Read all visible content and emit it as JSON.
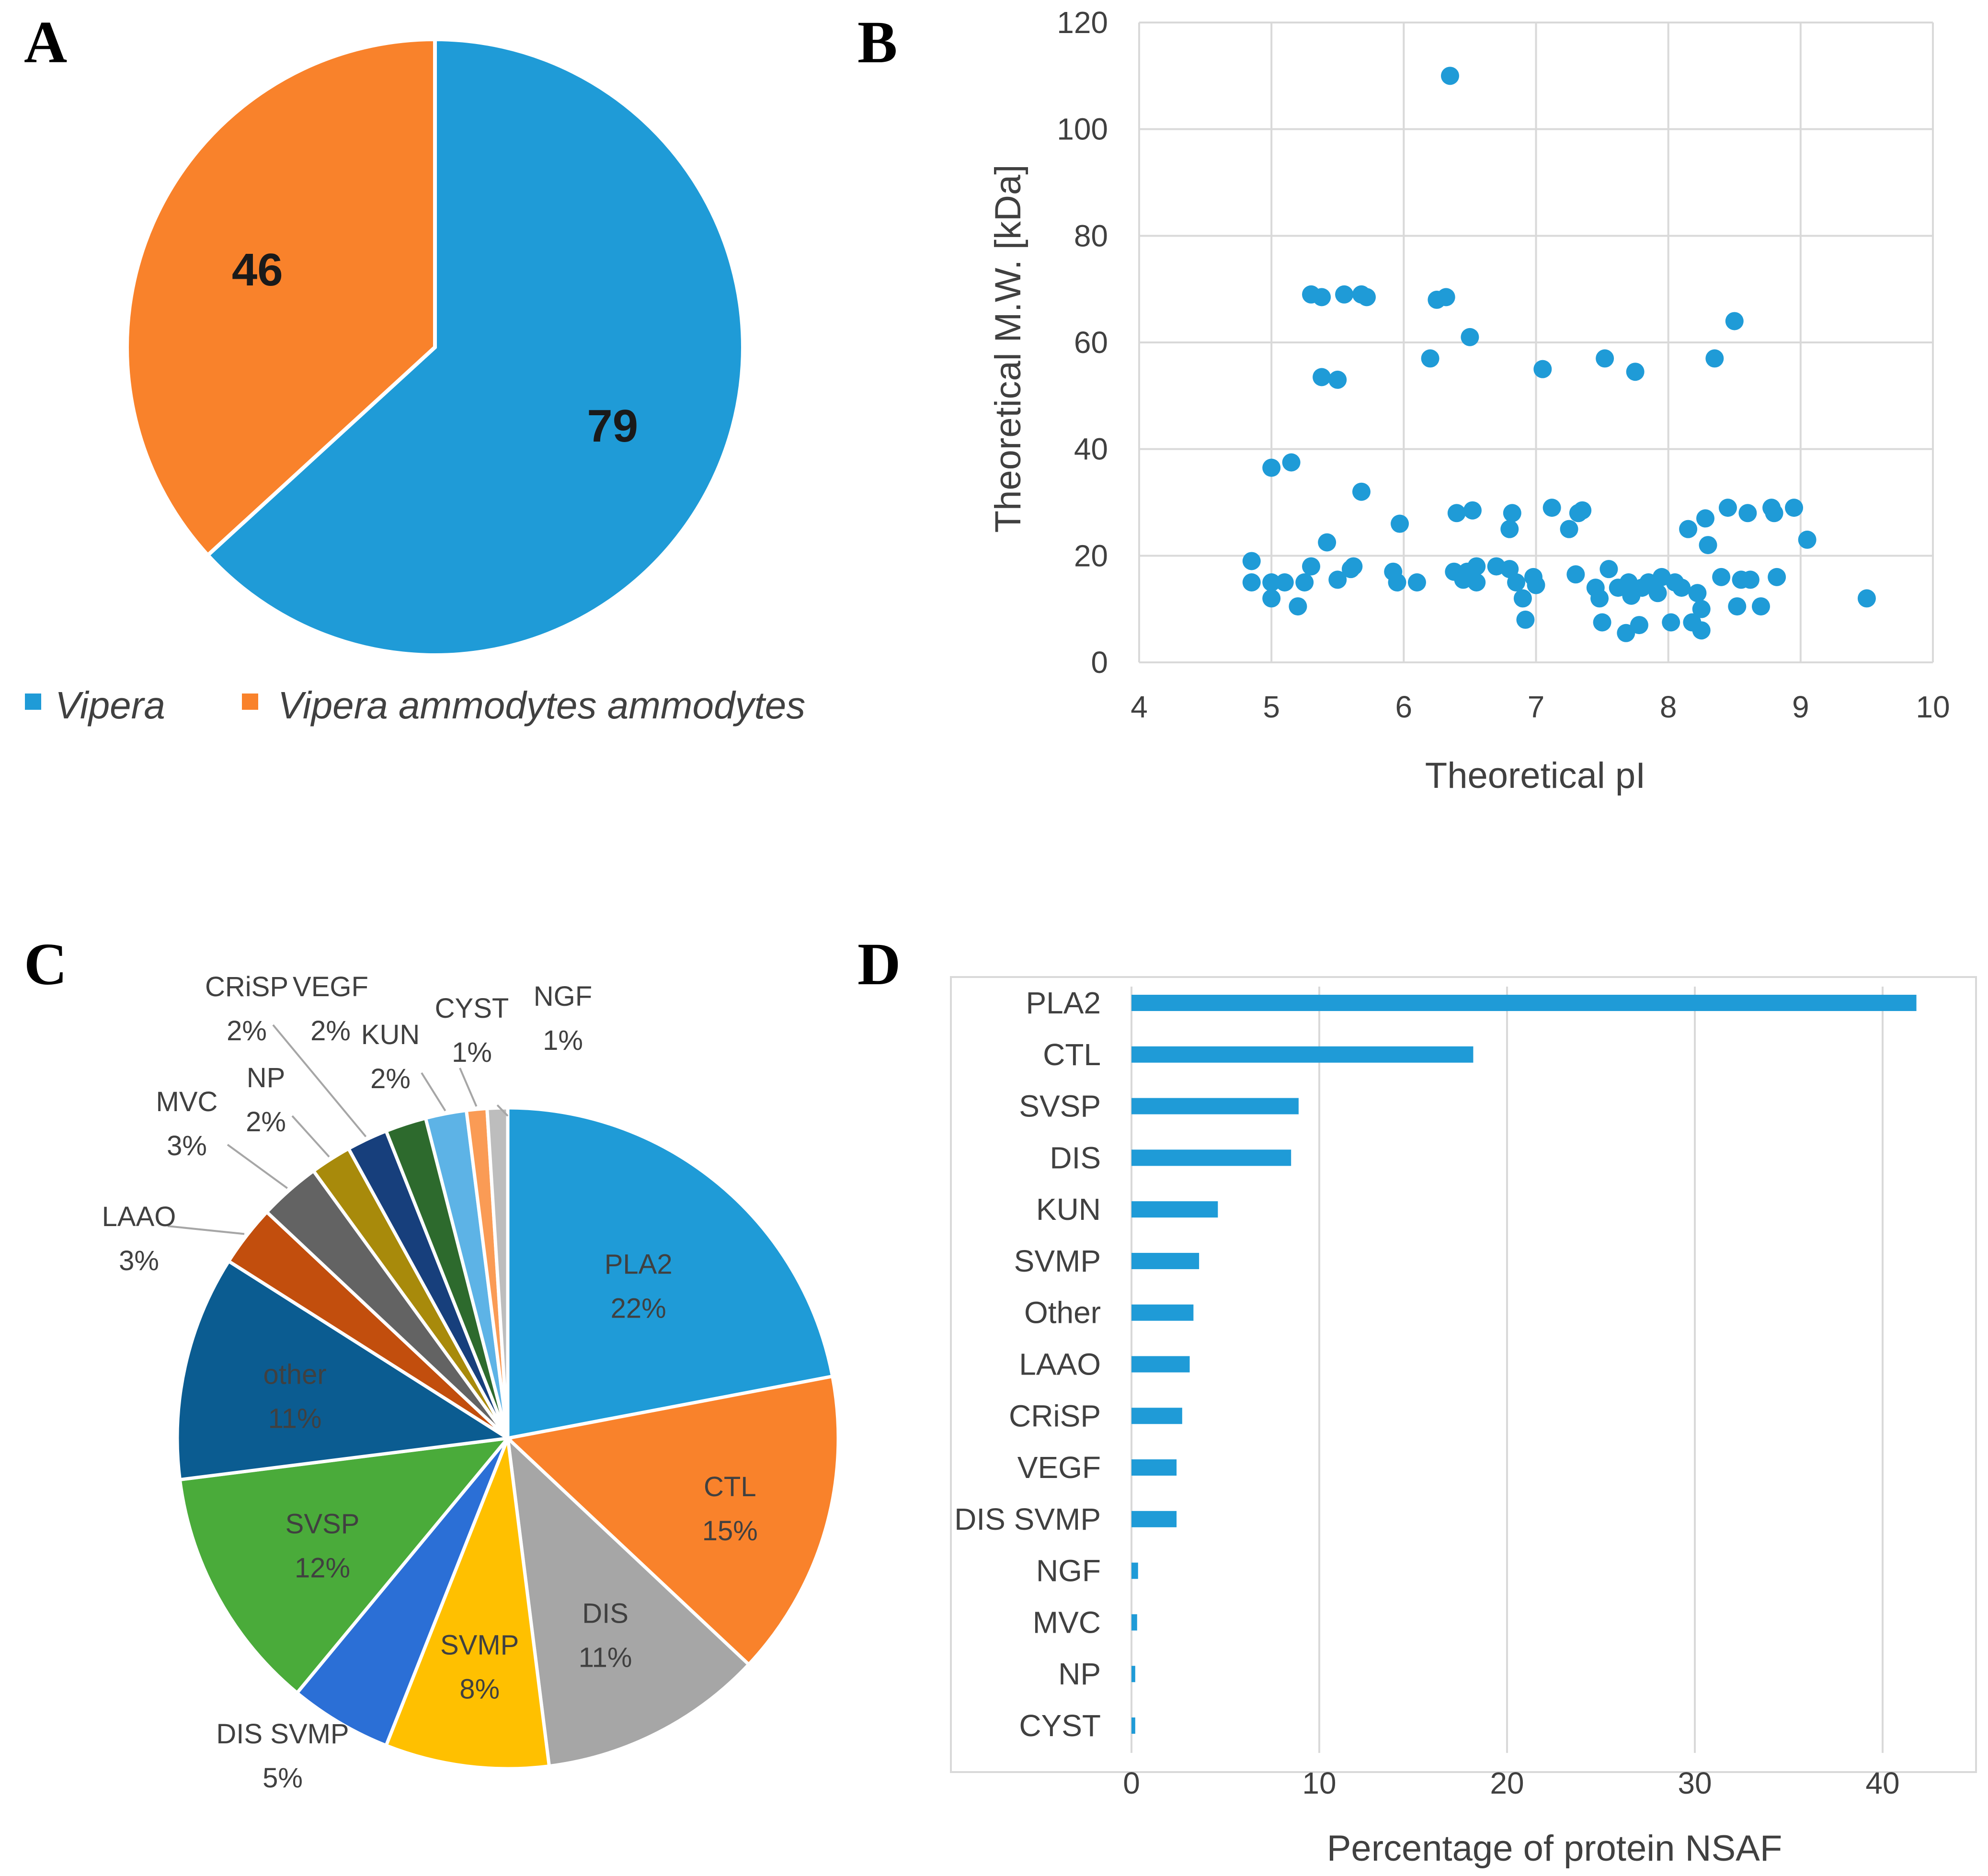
{
  "panels": {
    "a": "A",
    "b": "B",
    "c": "C",
    "d": "D"
  },
  "chart_data": [
    {
      "panel": "A",
      "type": "pie",
      "slices": [
        {
          "label": "Vipera",
          "value": 79,
          "color": "#1f9bd7"
        },
        {
          "label": "Vipera ammodytes ammodytes",
          "value": 46,
          "color": "#f9822b"
        }
      ],
      "legend": [
        "Vipera",
        "Vipera ammodytes ammodytes"
      ],
      "legend_position": "bottom"
    },
    {
      "panel": "B",
      "type": "scatter",
      "xlabel": "Theoretical pI",
      "ylabel": "Theoretical M.W. [kDa]",
      "xlim": [
        4,
        10
      ],
      "ylim": [
        0,
        120
      ],
      "xticks": [
        "4",
        "5",
        "6",
        "7",
        "8",
        "9",
        "10"
      ],
      "yticks": [
        "0",
        "20",
        "40",
        "60",
        "80",
        "100",
        "120"
      ],
      "grid": true,
      "color": "#1f9bd7",
      "points": [
        [
          4.85,
          19
        ],
        [
          4.85,
          15
        ],
        [
          5.0,
          36.5
        ],
        [
          5.0,
          15
        ],
        [
          5.0,
          12
        ],
        [
          5.1,
          15
        ],
        [
          5.15,
          37.5
        ],
        [
          5.2,
          10.5
        ],
        [
          5.25,
          15
        ],
        [
          5.3,
          18
        ],
        [
          5.3,
          69
        ],
        [
          5.38,
          68.5
        ],
        [
          5.38,
          53.5
        ],
        [
          5.42,
          22.5
        ],
        [
          5.5,
          53
        ],
        [
          5.5,
          15.5
        ],
        [
          5.55,
          69
        ],
        [
          5.6,
          17.5
        ],
        [
          5.62,
          18
        ],
        [
          5.68,
          32
        ],
        [
          5.68,
          69
        ],
        [
          5.72,
          68.5
        ],
        [
          5.92,
          17
        ],
        [
          5.95,
          15
        ],
        [
          5.97,
          26
        ],
        [
          6.1,
          15
        ],
        [
          6.2,
          57
        ],
        [
          6.25,
          68
        ],
        [
          6.32,
          68.5
        ],
        [
          6.35,
          110
        ],
        [
          6.38,
          17
        ],
        [
          6.4,
          28
        ],
        [
          6.45,
          15.5
        ],
        [
          6.48,
          17
        ],
        [
          6.5,
          61
        ],
        [
          6.52,
          28.5
        ],
        [
          6.55,
          18
        ],
        [
          6.55,
          15
        ],
        [
          6.7,
          18
        ],
        [
          6.8,
          17.5
        ],
        [
          6.8,
          25
        ],
        [
          6.82,
          28
        ],
        [
          6.85,
          15
        ],
        [
          6.9,
          12
        ],
        [
          6.92,
          8
        ],
        [
          6.98,
          16
        ],
        [
          7.0,
          14.5
        ],
        [
          7.05,
          55
        ],
        [
          7.12,
          29
        ],
        [
          7.25,
          25
        ],
        [
          7.3,
          16.5
        ],
        [
          7.32,
          28
        ],
        [
          7.35,
          28.5
        ],
        [
          7.45,
          14
        ],
        [
          7.48,
          12
        ],
        [
          7.5,
          7.5
        ],
        [
          7.52,
          57
        ],
        [
          7.55,
          17.5
        ],
        [
          7.62,
          14
        ],
        [
          7.68,
          5.5
        ],
        [
          7.7,
          15
        ],
        [
          7.72,
          12.5
        ],
        [
          7.75,
          54.5
        ],
        [
          7.78,
          7
        ],
        [
          7.8,
          14
        ],
        [
          7.85,
          15
        ],
        [
          7.92,
          13
        ],
        [
          7.95,
          16
        ],
        [
          8.02,
          7.5
        ],
        [
          8.05,
          15
        ],
        [
          8.1,
          14
        ],
        [
          8.15,
          25
        ],
        [
          8.18,
          7.5
        ],
        [
          8.22,
          13
        ],
        [
          8.25,
          6
        ],
        [
          8.25,
          10
        ],
        [
          8.28,
          27
        ],
        [
          8.3,
          22
        ],
        [
          8.35,
          57
        ],
        [
          8.4,
          16
        ],
        [
          8.45,
          29
        ],
        [
          8.5,
          64
        ],
        [
          8.52,
          10.5
        ],
        [
          8.55,
          15.5
        ],
        [
          8.6,
          28
        ],
        [
          8.62,
          15.5
        ],
        [
          8.7,
          10.5
        ],
        [
          8.78,
          29
        ],
        [
          8.8,
          28
        ],
        [
          8.82,
          16
        ],
        [
          8.95,
          29
        ],
        [
          9.05,
          23
        ],
        [
          9.5,
          12
        ]
      ]
    },
    {
      "panel": "C",
      "type": "pie",
      "slices": [
        {
          "label": "PLA2",
          "pct": "22%",
          "value": 22,
          "color": "#1f9bd7"
        },
        {
          "label": "CTL",
          "pct": "15%",
          "value": 15,
          "color": "#f9822b"
        },
        {
          "label": "DIS",
          "pct": "11%",
          "value": 11,
          "color": "#a6a6a6"
        },
        {
          "label": "SVMP",
          "pct": "8%",
          "value": 8,
          "color": "#ffc000"
        },
        {
          "label": "DIS SVMP",
          "pct": "5%",
          "value": 5,
          "color": "#2b6fd6"
        },
        {
          "label": "SVSP",
          "pct": "12%",
          "value": 12,
          "color": "#4aab3a"
        },
        {
          "label": "other",
          "pct": "11%",
          "value": 11,
          "color": "#0b5c91"
        },
        {
          "label": "LAAO",
          "pct": "3%",
          "value": 3,
          "color": "#c24e0d"
        },
        {
          "label": "MVC",
          "pct": "3%",
          "value": 3,
          "color": "#636363"
        },
        {
          "label": "NP",
          "pct": "2%",
          "value": 2,
          "color": "#a88a0b"
        },
        {
          "label": "CRiSP",
          "pct": "2%",
          "value": 2,
          "color": "#173f7c"
        },
        {
          "label": "VEGF",
          "pct": "2%",
          "value": 2,
          "color": "#2d6a2d"
        },
        {
          "label": "KUN",
          "pct": "2%",
          "value": 2,
          "color": "#5db3e6"
        },
        {
          "label": "CYST",
          "pct": "1%",
          "value": 1,
          "color": "#fa9b55"
        },
        {
          "label": "NGF",
          "pct": "1%",
          "value": 1,
          "color": "#bdbdbd"
        }
      ]
    },
    {
      "panel": "D",
      "type": "bar",
      "orientation": "horizontal",
      "xlabel": "Percentage of protein NSAF",
      "xlim": [
        0,
        45
      ],
      "xticks": [
        "0",
        "10",
        "20",
        "30",
        "40"
      ],
      "grid": true,
      "color": "#1f9bd7",
      "categories": [
        "PLA2",
        "CTL",
        "SVSP",
        "DIS",
        "KUN",
        "SVMP",
        "Other",
        "LAAO",
        "CRiSP",
        "VEGF",
        "DIS SVMP",
        "NGF",
        "MVC",
        "NP",
        "CYST"
      ],
      "values": [
        41.8,
        18.2,
        8.9,
        8.5,
        4.6,
        3.6,
        3.3,
        3.1,
        2.7,
        2.4,
        2.4,
        0.35,
        0.3,
        0.2,
        0.2
      ]
    }
  ]
}
